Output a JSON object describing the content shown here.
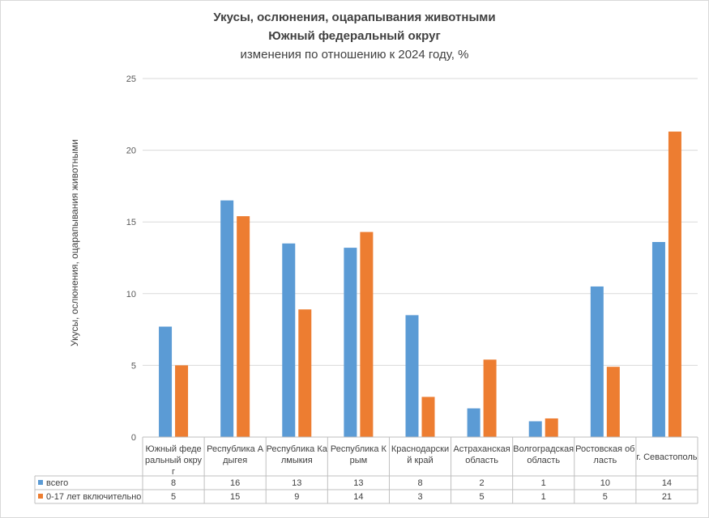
{
  "chart_data": {
    "type": "bar",
    "title": "Укусы, ослюнения, оцарапывания животными",
    "subtitle": "Южный федеральный округ",
    "subtitle2": "изменения по отношению к 2024 году, %",
    "ylabel": "Укусы, ослюнения, оцарапывания животными",
    "xlabel": "",
    "ylim": [
      0,
      25
    ],
    "yticks": [
      "0",
      "5",
      "10",
      "15",
      "20",
      "25"
    ],
    "grid": true,
    "categories": [
      [
        "Южный феде",
        "ральный окру",
        "г"
      ],
      [
        "Республика А",
        "дыгея"
      ],
      [
        "Республика Ка",
        "лмыкия"
      ],
      [
        "Республика К",
        "рым"
      ],
      [
        "Краснодарски",
        "й край"
      ],
      [
        "Астраханская",
        "область"
      ],
      [
        "Волгоградская",
        "область"
      ],
      [
        "Ростовская об",
        "ласть"
      ],
      [
        "г. Севастополь"
      ]
    ],
    "series": [
      {
        "name": "всего",
        "color": "#5b9bd5",
        "values": [
          7.7,
          16.5,
          13.5,
          13.2,
          8.5,
          2.0,
          1.1,
          10.5,
          13.6
        ],
        "table_values": [
          "8",
          "16",
          "13",
          "13",
          "8",
          "2",
          "1",
          "10",
          "14"
        ]
      },
      {
        "name": "0-17 лет включительно",
        "color": "#ed7d31",
        "values": [
          5.0,
          15.4,
          8.9,
          14.3,
          2.8,
          5.4,
          1.3,
          4.9,
          21.3
        ],
        "table_values": [
          "5",
          "15",
          "9",
          "14",
          "3",
          "5",
          "1",
          "5",
          "21"
        ]
      }
    ]
  }
}
